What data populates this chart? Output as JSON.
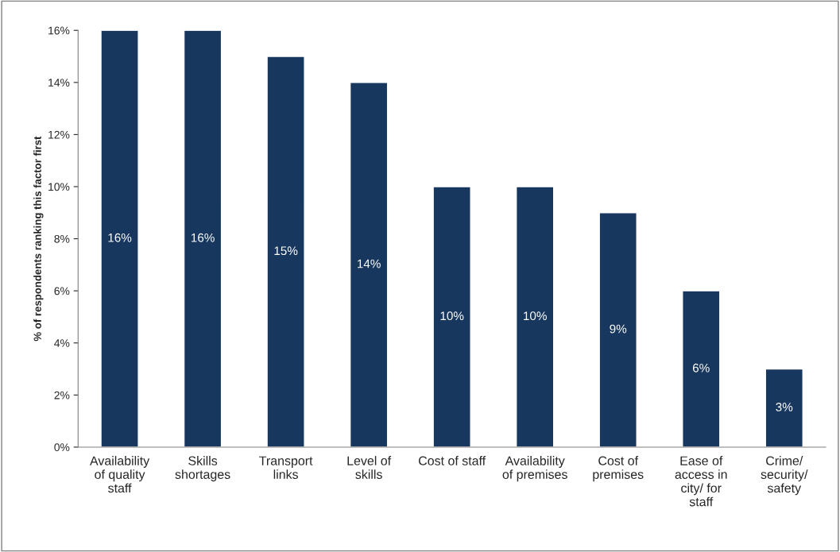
{
  "chart_data": {
    "type": "bar",
    "ylabel": "% of respondents ranking this factor first",
    "categories": [
      "Availability of quality staff",
      "Skills shortages",
      "Transport links",
      "Level of skills",
      "Cost of staff",
      "Availability of premises",
      "Cost of premises",
      "Ease of access in city/ for staff",
      "Crime/ security/ safety"
    ],
    "values": [
      16,
      16,
      15,
      14,
      10,
      10,
      9,
      6,
      3
    ],
    "value_labels": [
      "16%",
      "16%",
      "15%",
      "14%",
      "10%",
      "10%",
      "9%",
      "6%",
      "3%"
    ],
    "color": "#17375e",
    "ylim": [
      0,
      16
    ],
    "yticks": [
      {
        "value": 0,
        "label": "0%"
      },
      {
        "value": 2,
        "label": "2%"
      },
      {
        "value": 4,
        "label": "4%"
      },
      {
        "value": 6,
        "label": "6%"
      },
      {
        "value": 8,
        "label": "8%"
      },
      {
        "value": 10,
        "label": "10%"
      },
      {
        "value": 12,
        "label": "12%"
      },
      {
        "value": 14,
        "label": "14%"
      },
      {
        "value": 16,
        "label": "16%"
      }
    ],
    "grid": false,
    "legend": false
  }
}
